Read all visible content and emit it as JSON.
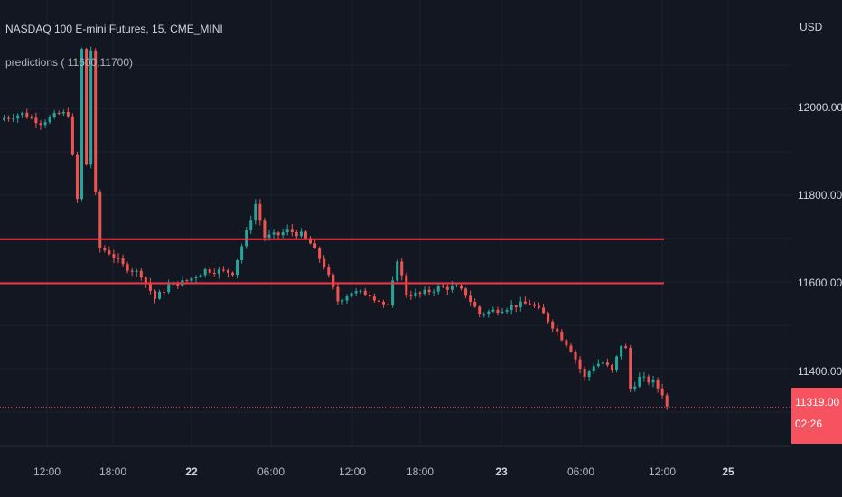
{
  "header": {
    "title": "NASDAQ 100 E-mini Futures, 15, CME_MINI",
    "indicator": "predictions ( 11600,11700)",
    "currency": "USD"
  },
  "price_badge": {
    "price": "11319.00",
    "countdown": "02:26"
  },
  "colors": {
    "background": "#131722",
    "up": "#26a69a",
    "down": "#ef5350",
    "line": "#f23645",
    "grid": "#1e222d"
  },
  "chart_data": {
    "type": "candlestick",
    "title": "NASDAQ 100 E-mini Futures, 15, CME_MINI",
    "ylabel": "USD",
    "ylim": [
      11230,
      12180
    ],
    "yticks": [
      11400,
      11600,
      11800,
      12000
    ],
    "ytick_labels": [
      "11400.00",
      "11600.00",
      "11800.00",
      "12000.00"
    ],
    "xtick_labels": [
      "12:00",
      "18:00",
      "22",
      "06:00",
      "12:00",
      "18:00",
      "23",
      "06:00",
      "12:00",
      "25"
    ],
    "xtick_bold": [
      false,
      false,
      true,
      false,
      false,
      false,
      true,
      false,
      false,
      true
    ],
    "horizontal_lines": [
      {
        "name": "predictions",
        "value": 11700,
        "color": "#f23645"
      },
      {
        "name": "predictions",
        "value": 11600,
        "color": "#f23645"
      }
    ],
    "last_price": 11319.0,
    "series": [
      {
        "name": "price",
        "path": [
          {
            "c": 0,
            "p": 11975
          },
          {
            "c": 4,
            "p": 11985
          },
          {
            "c": 8,
            "p": 11965
          },
          {
            "c": 12,
            "p": 11985
          },
          {
            "c": 14,
            "p": 11985
          },
          {
            "c": 16,
            "p": 11790
          },
          {
            "c": 17,
            "p": 12130
          },
          {
            "c": 18,
            "p": 11870
          },
          {
            "c": 19,
            "p": 12130
          },
          {
            "c": 20,
            "p": 11800
          },
          {
            "c": 21,
            "p": 11680
          },
          {
            "c": 23,
            "p": 11670
          },
          {
            "c": 26,
            "p": 11640
          },
          {
            "c": 30,
            "p": 11620
          },
          {
            "c": 33,
            "p": 11565
          },
          {
            "c": 36,
            "p": 11595
          },
          {
            "c": 40,
            "p": 11605
          },
          {
            "c": 44,
            "p": 11630
          },
          {
            "c": 50,
            "p": 11625
          },
          {
            "c": 53,
            "p": 11715
          },
          {
            "c": 55,
            "p": 11780
          },
          {
            "c": 57,
            "p": 11705
          },
          {
            "c": 60,
            "p": 11710
          },
          {
            "c": 62,
            "p": 11720
          },
          {
            "c": 65,
            "p": 11710
          },
          {
            "c": 67,
            "p": 11690
          },
          {
            "c": 70,
            "p": 11640
          },
          {
            "c": 73,
            "p": 11560
          },
          {
            "c": 76,
            "p": 11580
          },
          {
            "c": 80,
            "p": 11575
          },
          {
            "c": 84,
            "p": 11545
          },
          {
            "c": 86,
            "p": 11655
          },
          {
            "c": 88,
            "p": 11575
          },
          {
            "c": 91,
            "p": 11575
          },
          {
            "c": 95,
            "p": 11590
          },
          {
            "c": 99,
            "p": 11590
          },
          {
            "c": 101,
            "p": 11575
          },
          {
            "c": 104,
            "p": 11530
          },
          {
            "c": 108,
            "p": 11540
          },
          {
            "c": 112,
            "p": 11550
          },
          {
            "c": 115,
            "p": 11555
          },
          {
            "c": 118,
            "p": 11530
          },
          {
            "c": 121,
            "p": 11490
          },
          {
            "c": 124,
            "p": 11450
          },
          {
            "c": 127,
            "p": 11385
          },
          {
            "c": 129,
            "p": 11415
          },
          {
            "c": 131,
            "p": 11420
          },
          {
            "c": 133,
            "p": 11400
          },
          {
            "c": 135,
            "p": 11460
          },
          {
            "c": 136,
            "p": 11450
          },
          {
            "c": 137,
            "p": 11360
          },
          {
            "c": 139,
            "p": 11385
          },
          {
            "c": 142,
            "p": 11375
          },
          {
            "c": 144,
            "p": 11350
          },
          {
            "c": 145,
            "p": 11319
          }
        ]
      }
    ]
  }
}
